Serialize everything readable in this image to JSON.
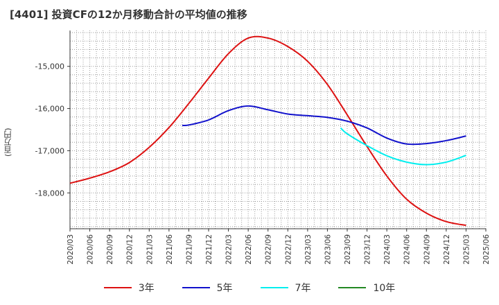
{
  "chart_data": {
    "type": "line",
    "title": "[4401]  投資CFの12か月移動合計の平均値の推移",
    "ylabel": "(百万円)",
    "xlabel": "",
    "ylim": [
      -18850,
      -14150
    ],
    "yticks": [
      -15000,
      -16000,
      -17000,
      -18000
    ],
    "ytick_labels": [
      "-15,000",
      "-16,000",
      "-17,000",
      "-18,000"
    ],
    "x_tick_labels": [
      "2020/03",
      "2020/06",
      "2020/09",
      "2020/12",
      "2021/03",
      "2021/06",
      "2021/09",
      "2021/12",
      "2022/03",
      "2022/06",
      "2022/09",
      "2022/12",
      "2023/03",
      "2023/06",
      "2023/09",
      "2023/12",
      "2024/03",
      "2024/06",
      "2024/09",
      "2024/12",
      "2025/03",
      "2025/06"
    ],
    "grid": true,
    "series": [
      {
        "name": "3年",
        "color": "#dd1111",
        "x": [
          "2020/03",
          "2020/06",
          "2020/09",
          "2020/12",
          "2021/03",
          "2021/06",
          "2021/09",
          "2021/12",
          "2022/03",
          "2022/06",
          "2022/09",
          "2022/12",
          "2023/03",
          "2023/06",
          "2023/09",
          "2023/12",
          "2024/03",
          "2024/06",
          "2024/09",
          "2024/12",
          "2025/03"
        ],
        "values": [
          -17770,
          -17650,
          -17500,
          -17280,
          -16920,
          -16450,
          -15880,
          -15280,
          -14700,
          -14330,
          -14330,
          -14530,
          -14880,
          -15430,
          -16150,
          -16900,
          -17600,
          -18150,
          -18480,
          -18680,
          -18770
        ]
      },
      {
        "name": "5年",
        "color": "#1111cc",
        "x": [
          "2021/08",
          "2021/09",
          "2021/12",
          "2022/03",
          "2022/06",
          "2022/09",
          "2022/12",
          "2023/03",
          "2023/06",
          "2023/09",
          "2023/12",
          "2024/03",
          "2024/06",
          "2024/09",
          "2024/12",
          "2025/03"
        ],
        "values": [
          -16400,
          -16390,
          -16270,
          -16050,
          -15940,
          -16030,
          -16130,
          -16170,
          -16210,
          -16300,
          -16460,
          -16700,
          -16840,
          -16830,
          -16760,
          -16650
        ]
      },
      {
        "name": "7年",
        "color": "#00eeee",
        "x": [
          "2023/08",
          "2023/09",
          "2023/12",
          "2024/03",
          "2024/06",
          "2024/09",
          "2024/12",
          "2025/03"
        ],
        "values": [
          -16460,
          -16600,
          -16880,
          -17120,
          -17270,
          -17330,
          -17270,
          -17110
        ]
      },
      {
        "name": "10年",
        "color": "#228822",
        "x": [],
        "values": []
      }
    ]
  }
}
